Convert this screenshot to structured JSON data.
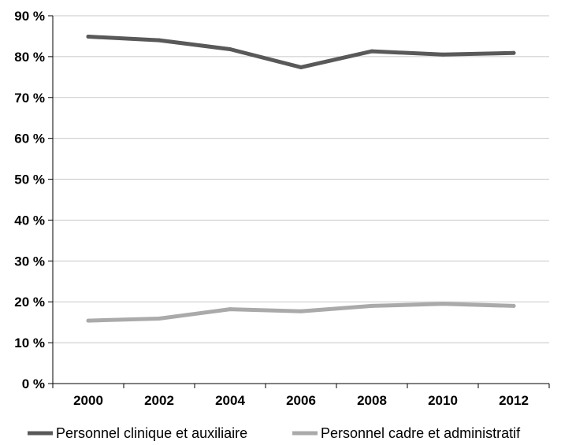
{
  "chart_data": {
    "type": "line",
    "x": [
      "2000",
      "2002",
      "2004",
      "2006",
      "2008",
      "2010",
      "2012"
    ],
    "y_ticks": [
      "0 %",
      "10 %",
      "20 %",
      "30 %",
      "40 %",
      "50 %",
      "60 %",
      "70 %",
      "80 %",
      "90 %"
    ],
    "y_tick_values": [
      0,
      10,
      20,
      30,
      40,
      50,
      60,
      70,
      80,
      90
    ],
    "ylim": [
      0,
      90
    ],
    "grid": "horizontal",
    "legend_position": "bottom",
    "title": "",
    "xlabel": "",
    "ylabel": "",
    "series": [
      {
        "name": "Personnel clinique et auxiliaire",
        "color": "#595959",
        "values": [
          84.9,
          84.0,
          81.8,
          77.4,
          81.3,
          80.5,
          80.9
        ]
      },
      {
        "name": "Personnel cadre et administratif",
        "color": "#aaaaaa",
        "values": [
          15.4,
          15.9,
          18.2,
          17.7,
          19.0,
          19.5,
          19.0
        ]
      }
    ]
  }
}
